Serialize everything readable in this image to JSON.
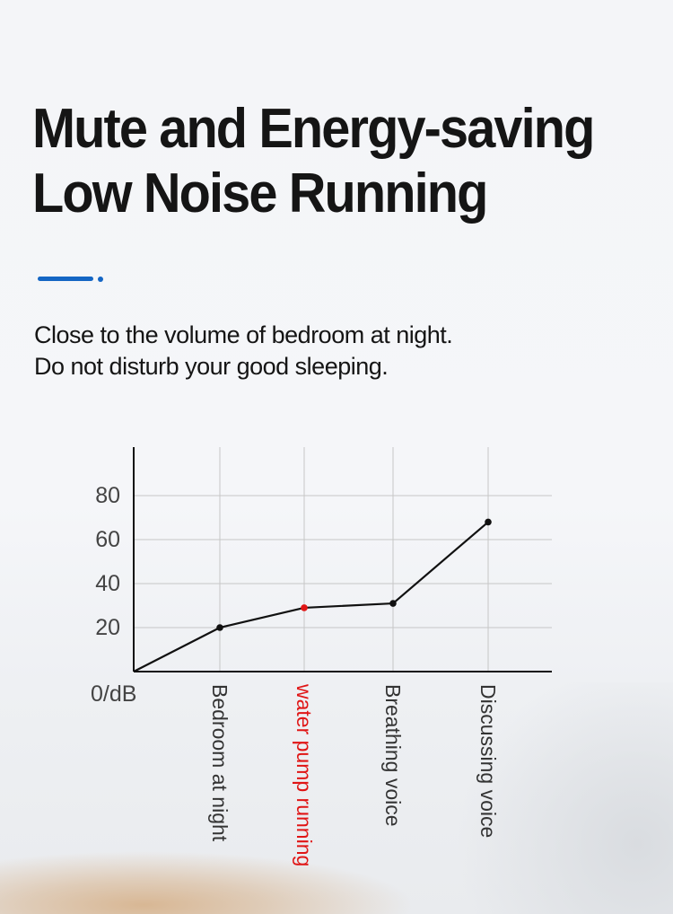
{
  "heading": {
    "line1": "Mute and Energy-saving",
    "line2": "Low Noise Running"
  },
  "subheading": {
    "line1": "Close to the volume of bedroom at night.",
    "line2": "Do not disturb your good sleeping."
  },
  "colors": {
    "accent": "#1466c4",
    "highlight": "#e01515",
    "line": "#111111"
  },
  "chart_data": {
    "type": "line",
    "x": [
      "",
      "Bedroom at night",
      "water pump running",
      "Breathing voice",
      "Discussing voice"
    ],
    "values": [
      0,
      20,
      29,
      31,
      68
    ],
    "highlight_index": 2,
    "yticks": [
      20,
      40,
      60,
      80
    ],
    "origin_label": "0/dB",
    "ylim": [
      0,
      100
    ],
    "grid": true,
    "legend": "none"
  }
}
